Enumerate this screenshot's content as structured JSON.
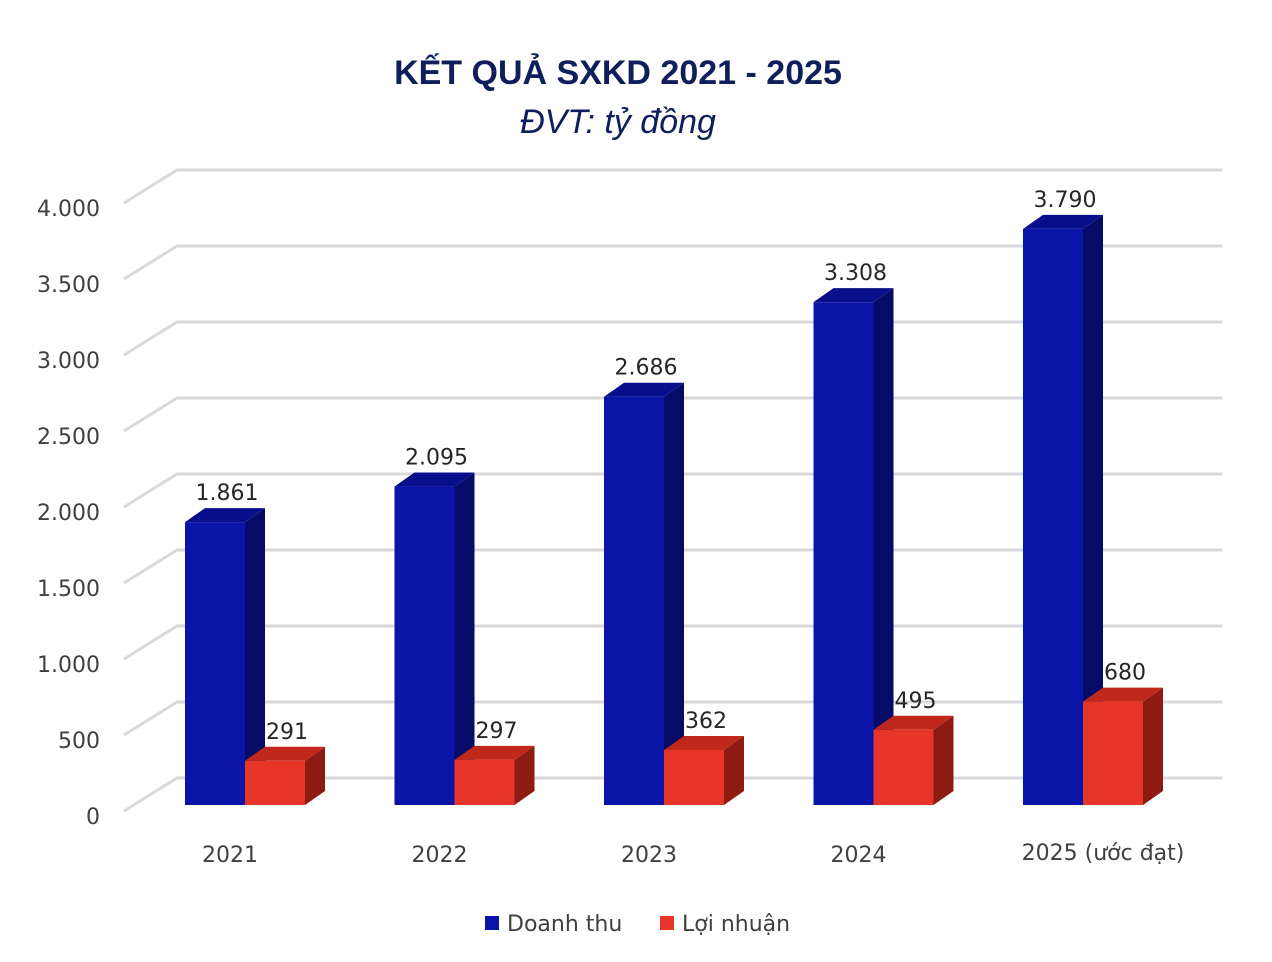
{
  "chart_data": {
    "type": "bar",
    "style": "3d-clustered-column",
    "title": "KẾT QUẢ SXKD 2021 - 2025",
    "subtitle": "ĐVT: tỷ đồng",
    "categories": [
      "2021",
      "2022",
      "2023",
      "2024",
      "2025 (ước đạt)"
    ],
    "series": [
      {
        "name": "Doanh thu",
        "color": "#0a14a8",
        "values": [
          1861,
          2095,
          2686,
          3308,
          3790
        ],
        "labels": [
          "1.861",
          "2.095",
          "2.686",
          "3.308",
          "3.790"
        ]
      },
      {
        "name": "Lợi nhuận",
        "color": "#e8352a",
        "values": [
          291,
          297,
          362,
          495,
          680
        ],
        "labels": [
          "291",
          "297",
          "362",
          "495",
          "680"
        ]
      }
    ],
    "ylim": [
      0,
      4000
    ],
    "yticks": [
      0,
      500,
      1000,
      1500,
      2000,
      2500,
      3000,
      3500,
      4000
    ],
    "ytick_labels": [
      "0",
      "500",
      "1.000",
      "1.500",
      "2.000",
      "2.500",
      "3.000",
      "3.500",
      "4.000"
    ],
    "grid": true,
    "legend": "bottom"
  }
}
